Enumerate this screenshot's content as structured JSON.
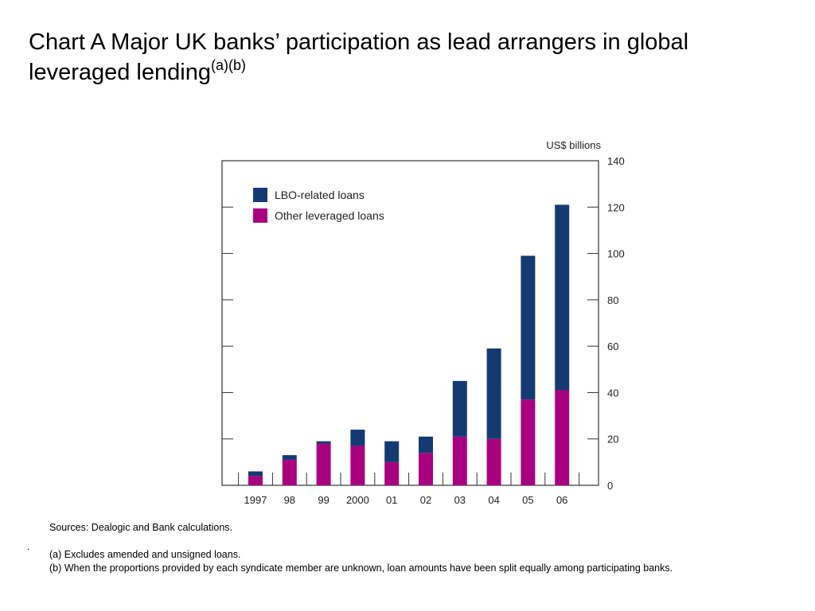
{
  "title": {
    "main": "Chart A  Major UK banks’ participation as lead arrangers in global leveraged lending",
    "sup": "(a)(b)"
  },
  "chart_data": {
    "type": "bar",
    "stacked": true,
    "categories": [
      "1997",
      "98",
      "99",
      "2000",
      "01",
      "02",
      "03",
      "04",
      "05",
      "06"
    ],
    "series": [
      {
        "name": "Other leveraged loans",
        "color": "#a8007f",
        "values": [
          4,
          11,
          18,
          17,
          10,
          14,
          21,
          20,
          37,
          41
        ]
      },
      {
        "name": "LBO-related loans",
        "color": "#153a72",
        "values": [
          2,
          2,
          1,
          7,
          9,
          7,
          24,
          39,
          62,
          80
        ]
      }
    ],
    "y_unit": "US$ billions",
    "ylim": [
      0,
      140
    ],
    "yticks": [
      0,
      20,
      40,
      60,
      80,
      100,
      120,
      140
    ],
    "y_axis_side": "right",
    "legend_position": "top-left",
    "grid": false
  },
  "notes": {
    "sources": "Sources:  Dealogic and Bank calculations.",
    "dot": ".",
    "note_a": "(a) Excludes amended and unsigned loans.",
    "note_b": "(b) When the proportions provided by each syndicate member are unknown, loan amounts have been split equally among participating banks."
  }
}
